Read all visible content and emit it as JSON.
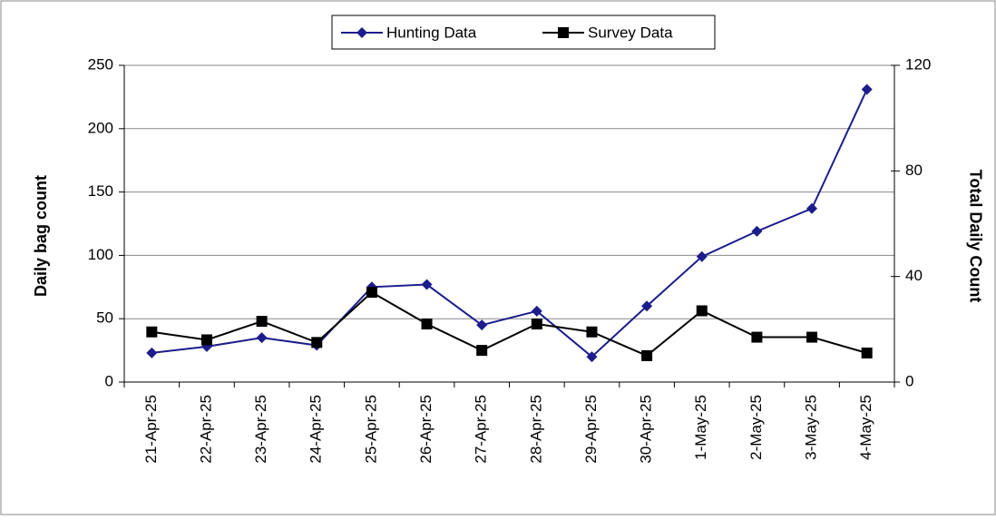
{
  "chart_data": {
    "type": "line",
    "categories": [
      "21-Apr-25",
      "22-Apr-25",
      "23-Apr-25",
      "24-Apr-25",
      "25-Apr-25",
      "26-Apr-25",
      "27-Apr-25",
      "28-Apr-25",
      "29-Apr-25",
      "30-Apr-25",
      "1-May-25",
      "2-May-25",
      "3-May-25",
      "4-May-25"
    ],
    "series": [
      {
        "name": "Hunting Data",
        "color": "#1c1c8c",
        "marker": "diamond",
        "values": [
          23,
          28,
          35,
          29,
          75,
          77,
          45,
          56,
          20,
          60,
          99,
          119,
          137,
          231
        ]
      },
      {
        "name": "Survey Data",
        "color": "#000000",
        "marker": "square",
        "axis": "y2",
        "values": [
          19,
          16,
          23,
          15,
          34,
          22,
          12,
          22,
          19,
          10,
          27,
          17,
          17,
          11
        ]
      }
    ],
    "ylabel": "Daily bag count",
    "y2label": "Total Daily Count",
    "ylim": [
      0,
      250
    ],
    "yticks": [
      0,
      50,
      100,
      150,
      200,
      250
    ],
    "y2lim": [
      0,
      120
    ],
    "y2ticks": [
      0,
      40,
      80,
      120
    ],
    "grid": true,
    "legend": "top"
  }
}
